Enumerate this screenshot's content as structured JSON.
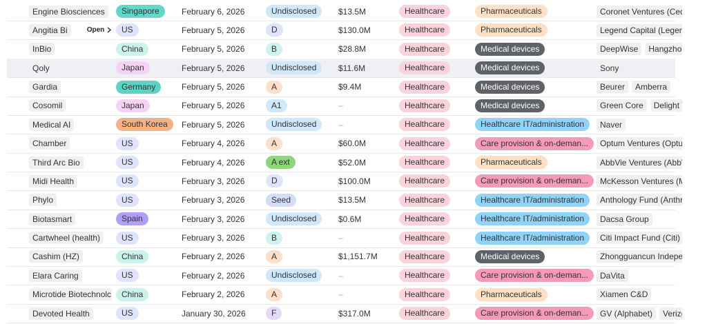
{
  "table": {
    "rows": [
      {
        "company": "Engine Biosciences",
        "country": {
          "text": "Singapore",
          "color": "#63d8c8"
        },
        "date": "February 6, 2026",
        "round": {
          "text": "Undisclosed",
          "color": "#cfe8fb"
        },
        "amount": "$13.5M",
        "sector": {
          "text": "Healthcare",
          "color": "#fbd3dd"
        },
        "subsector": {
          "text": "Pharmaceuticals",
          "color": "#fde0c5",
          "dark": false
        },
        "investors": [
          "Coronet Ventures (Ceda"
        ]
      },
      {
        "company": "Angitia Bi",
        "open": "Open",
        "country": {
          "text": "US",
          "color": "#dfe3fb"
        },
        "date": "February 5, 2026",
        "round": {
          "text": "D",
          "color": "#dfe3fb"
        },
        "amount": "$130.0M",
        "sector": {
          "text": "Healthcare",
          "color": "#fbd3dd"
        },
        "subsector": {
          "text": "Pharmaceuticals",
          "color": "#fde0c5",
          "dark": false
        },
        "investors": [
          "Legend Capital (Legend"
        ]
      },
      {
        "company": "InBio",
        "country": {
          "text": "China",
          "color": "#cbf2eb"
        },
        "date": "February 5, 2026",
        "round": {
          "text": "B",
          "color": "#cdf3ec"
        },
        "amount": "$28.8M",
        "sector": {
          "text": "Healthcare",
          "color": "#fbd3dd"
        },
        "subsector": {
          "text": "Medical devices",
          "color": "#5f6368",
          "dark": true
        },
        "investors": [
          "DeepWise",
          "Hangzhou"
        ]
      },
      {
        "company": "Qoly",
        "country": {
          "text": "Japan",
          "color": "#f6d3f5"
        },
        "date": "February 5, 2026",
        "round": {
          "text": "Undisclosed",
          "color": "#cfe8fb"
        },
        "amount": "$11.6M",
        "sector": {
          "text": "Healthcare",
          "color": "#fbd3dd"
        },
        "subsector": {
          "text": "Medical devices",
          "color": "#5f6368",
          "dark": true
        },
        "investors": [
          "Sony"
        ]
      },
      {
        "company": "Gardia",
        "country": {
          "text": "Germany",
          "color": "#5ed3c3"
        },
        "date": "February 5, 2026",
        "round": {
          "text": "A",
          "color": "#fde0cc"
        },
        "amount": "$9.4M",
        "sector": {
          "text": "Healthcare",
          "color": "#fbd3dd"
        },
        "subsector": {
          "text": "Medical devices",
          "color": "#5f6368",
          "dark": true
        },
        "investors": [
          "Beurer",
          "Amberra"
        ]
      },
      {
        "company": "Cosomil",
        "country": {
          "text": "Japan",
          "color": "#f6d3f5"
        },
        "date": "February 5, 2026",
        "round": {
          "text": "A1",
          "color": "#cfe8fb"
        },
        "amount": "–",
        "sector": {
          "text": "Healthcare",
          "color": "#fbd3dd"
        },
        "subsector": {
          "text": "Medical devices",
          "color": "#5f6368",
          "dark": true
        },
        "investors": [
          "Green Core",
          "Delight V"
        ]
      },
      {
        "company": "Medical AI",
        "country": {
          "text": "South Korea",
          "color": "#f4b183"
        },
        "date": "February 5, 2026",
        "round": {
          "text": "Undisclosed",
          "color": "#cfe8fb"
        },
        "amount": "–",
        "sector": {
          "text": "Healthcare",
          "color": "#fbd3dd"
        },
        "subsector": {
          "text": "Healthcare IT/administration",
          "color": "#8fd3f8",
          "dark": false
        },
        "investors": [
          "Naver"
        ]
      },
      {
        "company": "Chamber",
        "country": {
          "text": "US",
          "color": "#dfe3fb"
        },
        "date": "February 4, 2026",
        "round": {
          "text": "A",
          "color": "#fde0cc"
        },
        "amount": "$60.0M",
        "sector": {
          "text": "Healthcare",
          "color": "#fbd3dd"
        },
        "subsector": {
          "text": "Care provision & on-deman...",
          "color": "#f59ab8",
          "dark": false
        },
        "investors": [
          "Optum Ventures (Optu"
        ]
      },
      {
        "company": "Third Arc Bio",
        "country": {
          "text": "US",
          "color": "#dfe3fb"
        },
        "date": "February 4, 2026",
        "round": {
          "text": "A ext",
          "color": "#8bd77a"
        },
        "amount": "$52.0M",
        "sector": {
          "text": "Healthcare",
          "color": "#fbd3dd"
        },
        "subsector": {
          "text": "Pharmaceuticals",
          "color": "#fde0c5",
          "dark": false
        },
        "investors": [
          "AbbVie Ventures (AbbV"
        ]
      },
      {
        "company": "Midi Health",
        "country": {
          "text": "US",
          "color": "#dfe3fb"
        },
        "date": "February 3, 2026",
        "round": {
          "text": "D",
          "color": "#dfe3fb"
        },
        "amount": "$100.0M",
        "sector": {
          "text": "Healthcare",
          "color": "#fbd3dd"
        },
        "subsector": {
          "text": "Care provision & on-deman...",
          "color": "#f59ab8",
          "dark": false
        },
        "investors": [
          "McKesson Ventures (Mc"
        ]
      },
      {
        "company": "Phylo",
        "country": {
          "text": "US",
          "color": "#dfe3fb"
        },
        "date": "February 3, 2026",
        "round": {
          "text": "Seed",
          "color": "#d5dcfa"
        },
        "amount": "$13.5M",
        "sector": {
          "text": "Healthcare",
          "color": "#fbd3dd"
        },
        "subsector": {
          "text": "Healthcare IT/administration",
          "color": "#8fd3f8",
          "dark": false
        },
        "investors": [
          "Anthology Fund (Anthr"
        ]
      },
      {
        "company": "Biotasmart",
        "country": {
          "text": "Spain",
          "color": "#b39ef5"
        },
        "date": "February 3, 2026",
        "round": {
          "text": "Undisclosed",
          "color": "#cfe8fb"
        },
        "amount": "$0.6M",
        "sector": {
          "text": "Healthcare",
          "color": "#fbd3dd"
        },
        "subsector": {
          "text": "Healthcare IT/administration",
          "color": "#8fd3f8",
          "dark": false
        },
        "investors": [
          "Dacsa Group"
        ]
      },
      {
        "company": "Cartwheel (health)",
        "country": {
          "text": "US",
          "color": "#dfe3fb"
        },
        "date": "February 3, 2026",
        "round": {
          "text": "B",
          "color": "#cdf3ec"
        },
        "amount": "–",
        "sector": {
          "text": "Healthcare",
          "color": "#fbd3dd"
        },
        "subsector": {
          "text": "Healthcare IT/administration",
          "color": "#8fd3f8",
          "dark": false
        },
        "investors": [
          "Citi Impact Fund (Citi)"
        ]
      },
      {
        "company": "Cashim (HZ)",
        "country": {
          "text": "China",
          "color": "#cbf2eb"
        },
        "date": "February 2, 2026",
        "round": {
          "text": "A",
          "color": "#fde0cc"
        },
        "amount": "$1,151.7M",
        "sector": {
          "text": "Healthcare",
          "color": "#fbd3dd"
        },
        "subsector": {
          "text": "Medical devices",
          "color": "#5f6368",
          "dark": true
        },
        "investors": [
          "Zhongguancun Indeper"
        ]
      },
      {
        "company": "Elara Caring",
        "country": {
          "text": "US",
          "color": "#dfe3fb"
        },
        "date": "February 2, 2026",
        "round": {
          "text": "Undisclosed",
          "color": "#cfe8fb"
        },
        "amount": "–",
        "sector": {
          "text": "Healthcare",
          "color": "#fbd3dd"
        },
        "subsector": {
          "text": "Care provision & on-deman...",
          "color": "#f59ab8",
          "dark": false
        },
        "investors": [
          "DaVita"
        ]
      },
      {
        "company": "Microtide Biotechnolc",
        "country": {
          "text": "China",
          "color": "#cbf2eb"
        },
        "date": "February 2, 2026",
        "round": {
          "text": "A",
          "color": "#fde0cc"
        },
        "amount": "–",
        "sector": {
          "text": "Healthcare",
          "color": "#fbd3dd"
        },
        "subsector": {
          "text": "Pharmaceuticals",
          "color": "#fde0c5",
          "dark": false
        },
        "investors": [
          "Xiamen C&D"
        ]
      },
      {
        "company": "Devoted Health",
        "country": {
          "text": "US",
          "color": "#dfe3fb"
        },
        "date": "January 30, 2026",
        "round": {
          "text": "F",
          "color": "#e2d9fb"
        },
        "amount": "$317.0M",
        "sector": {
          "text": "Healthcare",
          "color": "#fbd3dd"
        },
        "subsector": {
          "text": "Care provision & on-deman...",
          "color": "#f59ab8",
          "dark": false
        },
        "investors": [
          "GV (Alphabet)",
          "Verizo"
        ]
      }
    ],
    "highlight_row": 3
  }
}
